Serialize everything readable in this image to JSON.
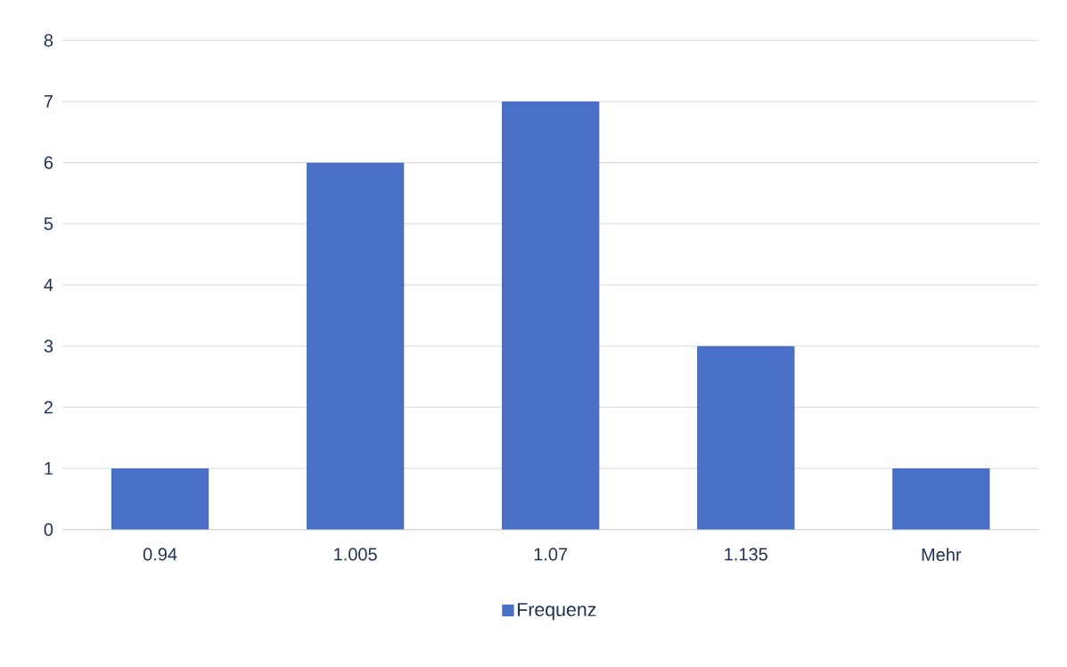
{
  "chart_data": {
    "type": "bar",
    "categories": [
      "0.94",
      "1.005",
      "1.07",
      "1.135",
      "Mehr"
    ],
    "series": [
      {
        "name": "Frequenz",
        "color": "#4a6fc6",
        "values": [
          1,
          6,
          7,
          3,
          1
        ]
      }
    ],
    "ylim": [
      0,
      8
    ],
    "yticks": [
      0,
      1,
      2,
      3,
      4,
      5,
      6,
      7,
      8
    ],
    "grid": "y",
    "legend": "bottom"
  }
}
